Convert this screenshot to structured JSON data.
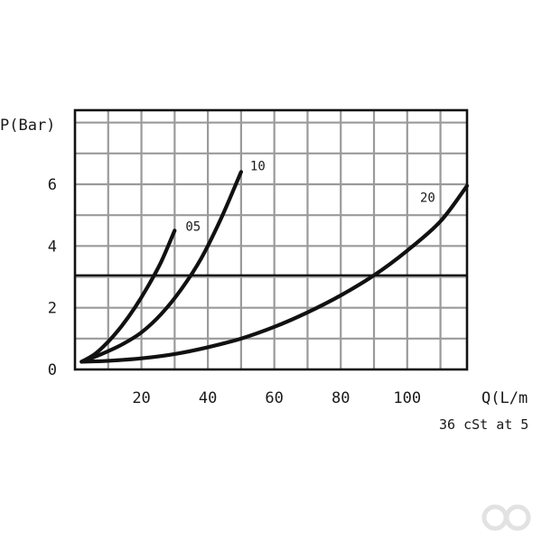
{
  "chart_data": {
    "type": "line",
    "title": "",
    "xlabel": "Q(L/m",
    "ylabel": "P(Bar)",
    "note": "36 cSt at 5",
    "xlim": [
      0,
      118
    ],
    "ylim": [
      0,
      8.4
    ],
    "xticks": [
      20,
      40,
      60,
      80,
      100
    ],
    "yticks": [
      0,
      2,
      4,
      6
    ],
    "xtick_labels": [
      "20",
      "40",
      "60",
      "80",
      "100"
    ],
    "ytick_labels": [
      "0",
      "2",
      "4",
      "6"
    ],
    "grid": true,
    "reference_line_y": 3.05,
    "series": [
      {
        "name": "05",
        "x": [
          2,
          6,
          10,
          14,
          18,
          22,
          26,
          30
        ],
        "y": [
          0.25,
          0.5,
          0.9,
          1.4,
          2.0,
          2.7,
          3.5,
          4.5
        ]
      },
      {
        "name": "10",
        "x": [
          2,
          8,
          14,
          20,
          26,
          32,
          38,
          44,
          50
        ],
        "y": [
          0.25,
          0.5,
          0.8,
          1.2,
          1.8,
          2.6,
          3.6,
          4.9,
          6.4
        ]
      },
      {
        "name": "20",
        "x": [
          2,
          10,
          20,
          30,
          40,
          50,
          60,
          70,
          80,
          90,
          100,
          110,
          118
        ],
        "y": [
          0.25,
          0.28,
          0.36,
          0.5,
          0.72,
          1.0,
          1.38,
          1.85,
          2.4,
          3.05,
          3.85,
          4.8,
          5.95
        ]
      }
    ]
  }
}
